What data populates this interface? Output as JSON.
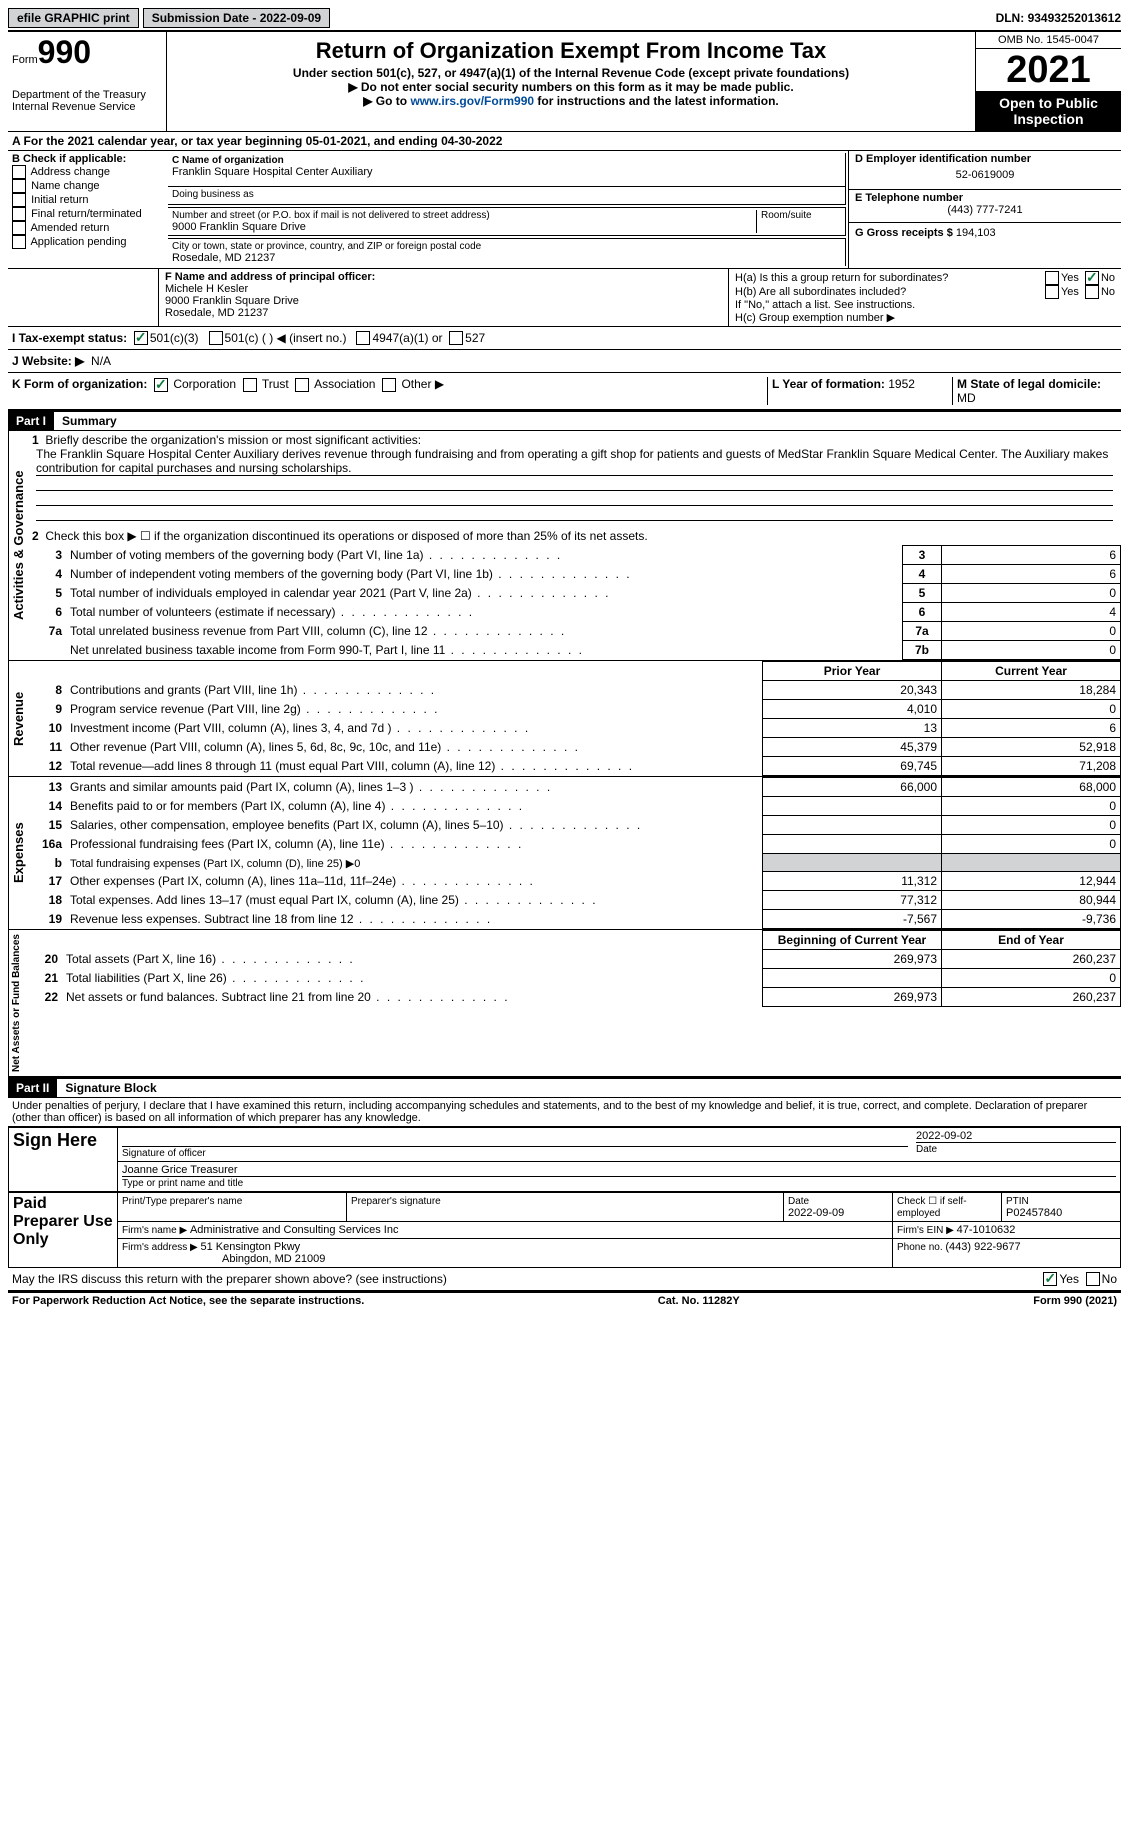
{
  "topbar": {
    "efile": "efile GRAPHIC print",
    "submission": "Submission Date - 2022-09-09",
    "dln_label": "DLN: ",
    "dln": "93493252013612"
  },
  "header": {
    "form_word": "Form",
    "form_num": "990",
    "dept": "Department of the Treasury\nInternal Revenue Service",
    "title": "Return of Organization Exempt From Income Tax",
    "subtitle": "Under section 501(c), 527, or 4947(a)(1) of the Internal Revenue Code (except private foundations)",
    "note1": "▶ Do not enter social security numbers on this form as it may be made public.",
    "note2_pre": "▶ Go to ",
    "note2_link": "www.irs.gov/Form990",
    "note2_post": " for instructions and the latest information.",
    "omb": "OMB No. 1545-0047",
    "year": "2021",
    "open": "Open to Public Inspection"
  },
  "A": {
    "text_pre": "A For the 2021 calendar year, or tax year beginning ",
    "begin": "05-01-2021",
    "mid": ", and ending ",
    "end": "04-30-2022"
  },
  "B": {
    "label": "B Check if applicable:",
    "opts": [
      "Address change",
      "Name change",
      "Initial return",
      "Final return/terminated",
      "Amended return",
      "Application pending"
    ]
  },
  "C": {
    "name_label": "C Name of organization",
    "name": "Franklin Square Hospital Center Auxiliary",
    "dba_label": "Doing business as",
    "street_label": "Number and street (or P.O. box if mail is not delivered to street address)",
    "room_label": "Room/suite",
    "street": "9000 Franklin Square Drive",
    "city_label": "City or town, state or province, country, and ZIP or foreign postal code",
    "city": "Rosedale, MD  21237"
  },
  "D": {
    "label": "D Employer identification number",
    "val": "52-0619009"
  },
  "E": {
    "label": "E Telephone number",
    "val": "(443) 777-7241"
  },
  "G": {
    "label": "G Gross receipts $ ",
    "val": "194,103"
  },
  "F": {
    "label": "F  Name and address of principal officer:",
    "name": "Michele H Kesler",
    "addr1": "9000 Franklin Square Drive",
    "addr2": "Rosedale, MD  21237"
  },
  "H": {
    "a": "H(a)  Is this a group return for subordinates?",
    "b": "H(b)  Are all subordinates included?",
    "note": "If \"No,\" attach a list. See instructions.",
    "c": "H(c)  Group exemption number ▶"
  },
  "I": {
    "label": "I  Tax-exempt status:",
    "o1": "501(c)(3)",
    "o2": "501(c) (  ) ◀ (insert no.)",
    "o3": "4947(a)(1) or",
    "o4": "527"
  },
  "J": {
    "label": "J  Website: ▶",
    "val": "N/A"
  },
  "K": {
    "label": "K Form of organization:",
    "opts": [
      "Corporation",
      "Trust",
      "Association",
      "Other ▶"
    ]
  },
  "L": {
    "label": "L Year of formation: ",
    "val": "1952"
  },
  "M": {
    "label": "M State of legal domicile:",
    "val": "MD"
  },
  "part1": {
    "num": "Part I",
    "title": "Summary",
    "tab1": "Activities & Governance",
    "tab2": "Revenue",
    "tab3": "Expenses",
    "tab4": "Net Assets or Fund Balances",
    "l1": "Briefly describe the organization's mission or most significant activities:",
    "mission": "The Franklin Square Hospital Center Auxiliary derives revenue through fundraising and from operating a gift shop for patients and guests of MedStar Franklin Square Medical Center. The Auxiliary makes contribution for capital purchases and nursing scholarships.",
    "l2": "Check this box ▶ ☐ if the organization discontinued its operations or disposed of more than 25% of its net assets.",
    "lines_gov": [
      {
        "n": "3",
        "d": "Number of voting members of the governing body (Part VI, line 1a)",
        "c": "3",
        "v": "6"
      },
      {
        "n": "4",
        "d": "Number of independent voting members of the governing body (Part VI, line 1b)",
        "c": "4",
        "v": "6"
      },
      {
        "n": "5",
        "d": "Total number of individuals employed in calendar year 2021 (Part V, line 2a)",
        "c": "5",
        "v": "0"
      },
      {
        "n": "6",
        "d": "Total number of volunteers (estimate if necessary)",
        "c": "6",
        "v": "4"
      },
      {
        "n": "7a",
        "d": "Total unrelated business revenue from Part VIII, column (C), line 12",
        "c": "7a",
        "v": "0"
      },
      {
        "n": "",
        "d": "Net unrelated business taxable income from Form 990-T, Part I, line 11",
        "c": "7b",
        "v": "0"
      }
    ],
    "col_prior": "Prior Year",
    "col_current": "Current Year",
    "lines_rev": [
      {
        "n": "8",
        "d": "Contributions and grants (Part VIII, line 1h)",
        "p": "20,343",
        "c": "18,284"
      },
      {
        "n": "9",
        "d": "Program service revenue (Part VIII, line 2g)",
        "p": "4,010",
        "c": "0"
      },
      {
        "n": "10",
        "d": "Investment income (Part VIII, column (A), lines 3, 4, and 7d )",
        "p": "13",
        "c": "6"
      },
      {
        "n": "11",
        "d": "Other revenue (Part VIII, column (A), lines 5, 6d, 8c, 9c, 10c, and 11e)",
        "p": "45,379",
        "c": "52,918"
      },
      {
        "n": "12",
        "d": "Total revenue—add lines 8 through 11 (must equal Part VIII, column (A), line 12)",
        "p": "69,745",
        "c": "71,208"
      }
    ],
    "lines_exp": [
      {
        "n": "13",
        "d": "Grants and similar amounts paid (Part IX, column (A), lines 1–3 )",
        "p": "66,000",
        "c": "68,000"
      },
      {
        "n": "14",
        "d": "Benefits paid to or for members (Part IX, column (A), line 4)",
        "p": "",
        "c": "0"
      },
      {
        "n": "15",
        "d": "Salaries, other compensation, employee benefits (Part IX, column (A), lines 5–10)",
        "p": "",
        "c": "0"
      },
      {
        "n": "16a",
        "d": "Professional fundraising fees (Part IX, column (A), line 11e)",
        "p": "",
        "c": "0"
      },
      {
        "n": "b",
        "d": "Total fundraising expenses (Part IX, column (D), line 25) ▶0",
        "p": "grey",
        "c": "grey"
      },
      {
        "n": "17",
        "d": "Other expenses (Part IX, column (A), lines 11a–11d, 11f–24e)",
        "p": "11,312",
        "c": "12,944"
      },
      {
        "n": "18",
        "d": "Total expenses. Add lines 13–17 (must equal Part IX, column (A), line 25)",
        "p": "77,312",
        "c": "80,944"
      },
      {
        "n": "19",
        "d": "Revenue less expenses. Subtract line 18 from line 12",
        "p": "-7,567",
        "c": "-9,736"
      }
    ],
    "col_beg": "Beginning of Current Year",
    "col_end": "End of Year",
    "lines_net": [
      {
        "n": "20",
        "d": "Total assets (Part X, line 16)",
        "p": "269,973",
        "c": "260,237"
      },
      {
        "n": "21",
        "d": "Total liabilities (Part X, line 26)",
        "p": "",
        "c": "0"
      },
      {
        "n": "22",
        "d": "Net assets or fund balances. Subtract line 21 from line 20",
        "p": "269,973",
        "c": "260,237"
      }
    ]
  },
  "part2": {
    "num": "Part II",
    "title": "Signature Block",
    "decl": "Under penalties of perjury, I declare that I have examined this return, including accompanying schedules and statements, and to the best of my knowledge and belief, it is true, correct, and complete. Declaration of preparer (other than officer) is based on all information of which preparer has any knowledge.",
    "sign_here": "Sign Here",
    "sig_officer": "Signature of officer",
    "sig_date": "2022-09-02",
    "date_label": "Date",
    "officer_name": "Joanne Grice  Treasurer",
    "type_name": "Type or print name and title",
    "paid": "Paid Preparer Use Only",
    "prep_name_label": "Print/Type preparer's name",
    "prep_sig_label": "Preparer's signature",
    "prep_date_label": "Date",
    "prep_date": "2022-09-09",
    "check_self": "Check ☐ if self-employed",
    "ptin_label": "PTIN",
    "ptin": "P02457840",
    "firm_name_label": "Firm's name     ▶ ",
    "firm_name": "Administrative and Consulting Services Inc",
    "firm_ein_label": "Firm's EIN ▶ ",
    "firm_ein": "47-1010632",
    "firm_addr_label": "Firm's address ▶ ",
    "firm_addr1": "51 Kensington Pkwy",
    "firm_addr2": "Abingdon, MD  21009",
    "phone_label": "Phone no. ",
    "phone": "(443) 922-9677",
    "discuss": "May the IRS discuss this return with the preparer shown above? (see instructions)",
    "yes": "Yes",
    "no": "No"
  },
  "footer": {
    "left": "For Paperwork Reduction Act Notice, see the separate instructions.",
    "mid": "Cat. No. 11282Y",
    "right": "Form 990 (2021)"
  }
}
